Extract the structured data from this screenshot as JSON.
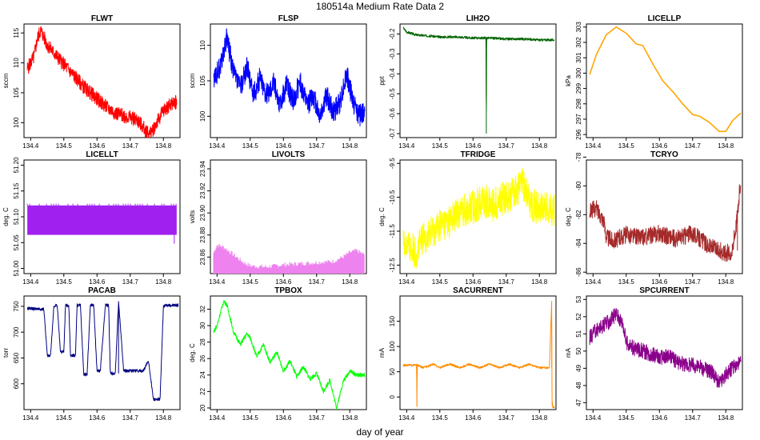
{
  "figure": {
    "title": "180514a   Medium Rate Data 2",
    "xlabel": "day of year"
  },
  "chart_data": [
    {
      "type": "line",
      "name": "FLWT",
      "title": "FLWT",
      "ylabel": "sccm",
      "color": "#ff0000",
      "xlim": [
        134.38,
        134.85
      ],
      "ylim": [
        97.5,
        116.5
      ],
      "xticks": [
        134.4,
        134.5,
        134.6,
        134.7,
        134.8
      ],
      "xtick_labels": [
        "134.4",
        "134.5",
        "134.6",
        "134.7",
        "134.8"
      ],
      "yticks": [
        100,
        105,
        110,
        115
      ],
      "ytick_labels": [
        "100",
        "105",
        "110",
        "115"
      ],
      "noise": 1.2,
      "x": [
        134.39,
        134.41,
        134.42,
        134.43,
        134.45,
        134.48,
        134.52,
        134.56,
        134.6,
        134.63,
        134.66,
        134.69,
        134.72,
        134.75,
        134.76,
        134.78,
        134.8,
        134.82,
        134.84
      ],
      "y": [
        109,
        111,
        114,
        115.5,
        113,
        111,
        108.5,
        106,
        104,
        102.5,
        101.5,
        101,
        100.5,
        98.5,
        98,
        100,
        102,
        103,
        103.5
      ]
    },
    {
      "type": "line",
      "name": "FLSP",
      "title": "FLSP",
      "ylabel": "sccm",
      "color": "#0000ff",
      "xlim": [
        134.38,
        134.85
      ],
      "ylim": [
        97,
        113
      ],
      "xticks": [
        134.4,
        134.5,
        134.6,
        134.7,
        134.8
      ],
      "xtick_labels": [
        "134.4",
        "134.5",
        "134.6",
        "134.7",
        "134.8"
      ],
      "yticks": [
        100,
        105,
        110
      ],
      "ytick_labels": [
        "100",
        "105",
        "110"
      ],
      "noise": 1.6,
      "x": [
        134.39,
        134.41,
        134.43,
        134.45,
        134.47,
        134.49,
        134.51,
        134.53,
        134.55,
        134.57,
        134.59,
        134.61,
        134.63,
        134.65,
        134.67,
        134.69,
        134.71,
        134.73,
        134.75,
        134.77,
        134.79,
        134.81,
        134.83,
        134.845
      ],
      "y": [
        105,
        107,
        111,
        106,
        104,
        107,
        103,
        105.5,
        103,
        105,
        101.5,
        104.5,
        102,
        105,
        101.5,
        103,
        100,
        103,
        100.5,
        102,
        106,
        102,
        100,
        101
      ]
    },
    {
      "type": "line",
      "name": "LIH2O",
      "title": "LIH2O",
      "ylabel": "ppt",
      "color": "#006400",
      "xlim": [
        134.38,
        134.85
      ],
      "ylim": [
        -0.72,
        -0.15
      ],
      "xticks": [
        134.4,
        134.5,
        134.6,
        134.7,
        134.8
      ],
      "xtick_labels": [
        "134.4",
        "134.5",
        "134.6",
        "134.7",
        "134.8"
      ],
      "yticks": [
        -0.7,
        -0.6,
        -0.5,
        -0.4,
        -0.3,
        -0.2
      ],
      "ytick_labels": [
        "-0.7",
        "-0.6",
        "-0.5",
        "-0.4",
        "-0.3",
        "-0.2"
      ],
      "noise": 0.006,
      "x": [
        134.39,
        134.4,
        134.43,
        134.47,
        134.5,
        134.55,
        134.6,
        134.639,
        134.64,
        134.641,
        134.7,
        134.75,
        134.8,
        134.845
      ],
      "y": [
        -0.17,
        -0.19,
        -0.205,
        -0.21,
        -0.215,
        -0.215,
        -0.22,
        -0.22,
        -0.7,
        -0.22,
        -0.225,
        -0.225,
        -0.23,
        -0.23
      ]
    },
    {
      "type": "line",
      "name": "LICELLP",
      "title": "LICELLP",
      "ylabel": "kPa",
      "color": "#ffa500",
      "xlim": [
        134.38,
        134.85
      ],
      "ylim": [
        295.8,
        303.2
      ],
      "xticks": [
        134.4,
        134.5,
        134.6,
        134.7,
        134.8
      ],
      "xtick_labels": [
        "134.4",
        "134.5",
        "134.6",
        "134.7",
        "134.8"
      ],
      "yticks": [
        296,
        297,
        298,
        299,
        300,
        301,
        302,
        303
      ],
      "ytick_labels": [
        "296",
        "297",
        "298",
        "299",
        "300",
        "301",
        "302",
        "303"
      ],
      "noise": 0,
      "x": [
        134.39,
        134.41,
        134.44,
        134.47,
        134.5,
        134.53,
        134.55,
        134.58,
        134.61,
        134.64,
        134.67,
        134.7,
        134.72,
        134.75,
        134.78,
        134.8,
        134.82,
        134.845
      ],
      "y": [
        299.9,
        301.2,
        302.5,
        303,
        302.6,
        301.9,
        301.8,
        300.6,
        299.5,
        298.8,
        298,
        297.3,
        297.2,
        296.8,
        296.2,
        296.2,
        296.9,
        297.4
      ]
    },
    {
      "type": "line",
      "name": "LICELLT",
      "title": "LICELLT",
      "ylabel": "deg. C",
      "color": "#a020f0",
      "xlim": [
        134.38,
        134.85
      ],
      "ylim": [
        50.99,
        51.21
      ],
      "xticks": [
        134.4,
        134.5,
        134.6,
        134.7,
        134.8
      ],
      "xtick_labels": [
        "134.4",
        "134.5",
        "134.6",
        "134.7",
        "134.8"
      ],
      "yticks": [
        51.0,
        51.05,
        51.1,
        51.15,
        51.2
      ],
      "ytick_labels": [
        "51.00",
        "51.05",
        "51.10",
        "51.15",
        "51.20"
      ],
      "noise": 0,
      "x": [
        134.39,
        134.84
      ],
      "y": [
        51.065,
        51.122
      ]
    },
    {
      "type": "line",
      "name": "LIVOLTS",
      "title": "LIVOLTS",
      "ylabel": "volts",
      "color": "#ee82ee",
      "xlim": [
        134.38,
        134.85
      ],
      "ylim": [
        23.845,
        23.948
      ],
      "xticks": [
        134.4,
        134.5,
        134.6,
        134.7,
        134.8
      ],
      "xtick_labels": [
        "134.4",
        "134.5",
        "134.6",
        "134.7",
        "134.8"
      ],
      "yticks": [
        23.86,
        23.88,
        23.9,
        23.92,
        23.94
      ],
      "ytick_labels": [
        "23.86",
        "23.88",
        "23.90",
        "23.92",
        "23.94"
      ],
      "noise": 0,
      "x": [
        134.39,
        134.4,
        134.42,
        134.45,
        134.48,
        134.5,
        134.55,
        134.6,
        134.65,
        134.7,
        134.75,
        134.78,
        134.8,
        134.82,
        134.845
      ],
      "y": [
        23.864,
        23.871,
        23.869,
        23.862,
        23.855,
        23.852,
        23.851,
        23.853,
        23.854,
        23.855,
        23.856,
        23.86,
        23.864,
        23.866,
        23.862
      ]
    },
    {
      "type": "line",
      "name": "TFRIDGE",
      "title": "TFRIDGE",
      "ylabel": "deg. C",
      "color": "#ffff00",
      "xlim": [
        134.38,
        134.85
      ],
      "ylim": [
        -12.75,
        -9.4
      ],
      "xticks": [
        134.4,
        134.5,
        134.6,
        134.7,
        134.8
      ],
      "xtick_labels": [
        "134.4",
        "134.5",
        "134.6",
        "134.7",
        "134.8"
      ],
      "yticks": [
        -12.5,
        -11.5,
        -10.5,
        -9.5
      ],
      "ytick_labels": [
        "-12.5",
        "-11.5",
        "-10.5",
        "-9.5"
      ],
      "noise": 0.5,
      "x": [
        134.39,
        134.41,
        134.43,
        134.45,
        134.48,
        134.5,
        134.53,
        134.56,
        134.6,
        134.63,
        134.66,
        134.7,
        134.72,
        134.75,
        134.77,
        134.8,
        134.82,
        134.845
      ],
      "y": [
        -11.8,
        -12,
        -12.1,
        -11.7,
        -11.5,
        -11.3,
        -11.2,
        -10.9,
        -10.8,
        -10.6,
        -10.7,
        -10.5,
        -10.4,
        -10.1,
        -10.6,
        -10.9,
        -10.8,
        -10.9
      ]
    },
    {
      "type": "line",
      "name": "TCRYO",
      "title": "TCRYO",
      "ylabel": "deg. C",
      "color": "#a52a2a",
      "xlim": [
        134.38,
        134.85
      ],
      "ylim": [
        -86.1,
        -78.2
      ],
      "xticks": [
        134.4,
        134.5,
        134.6,
        134.7,
        134.8
      ],
      "xtick_labels": [
        "134.4",
        "134.5",
        "134.6",
        "134.7",
        "134.8"
      ],
      "yticks": [
        -86,
        -84,
        -82,
        -80,
        -78
      ],
      "ytick_labels": [
        "-86",
        "-84",
        "-82",
        "-80",
        "-78"
      ],
      "noise": 0.6,
      "x": [
        134.39,
        134.41,
        134.43,
        134.44,
        134.46,
        134.5,
        134.55,
        134.6,
        134.65,
        134.7,
        134.75,
        134.8,
        134.82,
        134.835,
        134.845
      ],
      "y": [
        -81.7,
        -81.6,
        -82.3,
        -83.5,
        -83.8,
        -83.4,
        -83.6,
        -83.3,
        -83.7,
        -83.3,
        -84.2,
        -84.7,
        -84.5,
        -82,
        -79.5
      ]
    },
    {
      "type": "line",
      "name": "PACAB",
      "title": "PACAB",
      "ylabel": "torr",
      "color": "#000080",
      "xlim": [
        134.38,
        134.85
      ],
      "ylim": [
        550,
        770
      ],
      "xticks": [
        134.4,
        134.5,
        134.6,
        134.7,
        134.8
      ],
      "xtick_labels": [
        "134.4",
        "134.5",
        "134.6",
        "134.7",
        "134.8"
      ],
      "yticks": [
        600,
        650,
        700,
        750
      ],
      "ytick_labels": [
        "600",
        "650",
        "700",
        "750"
      ],
      "noise": 3,
      "x": [
        134.39,
        134.44,
        134.45,
        134.46,
        134.47,
        134.48,
        134.49,
        134.5,
        134.505,
        134.515,
        134.52,
        134.535,
        134.54,
        134.55,
        134.56,
        134.57,
        134.58,
        134.59,
        134.6,
        134.61,
        134.625,
        134.635,
        134.64,
        134.655,
        134.665,
        134.68,
        134.72,
        134.74,
        134.755,
        134.77,
        134.78,
        134.79,
        134.8,
        134.805,
        134.82,
        134.845
      ],
      "y": [
        746,
        744,
        655,
        655,
        750,
        752,
        662,
        662,
        752,
        752,
        655,
        655,
        752,
        752,
        618,
        618,
        752,
        752,
        625,
        625,
        752,
        752,
        620,
        620,
        760,
        625,
        625,
        625,
        645,
        570,
        570,
        570,
        750,
        752,
        752,
        752
      ]
    },
    {
      "type": "line",
      "name": "TPBOX",
      "title": "TPBOX",
      "ylabel": "deg. C",
      "color": "#00ff00",
      "xlim": [
        134.38,
        134.85
      ],
      "ylim": [
        19.8,
        33.6
      ],
      "xticks": [
        134.4,
        134.5,
        134.6,
        134.7,
        134.8
      ],
      "xtick_labels": [
        "134.4",
        "134.5",
        "134.6",
        "134.7",
        "134.8"
      ],
      "yticks": [
        20,
        22,
        24,
        26,
        28,
        30,
        32
      ],
      "ytick_labels": [
        "20",
        "22",
        "24",
        "26",
        "28",
        "30",
        "32"
      ],
      "noise": 0.25,
      "x": [
        134.39,
        134.4,
        134.42,
        134.43,
        134.45,
        134.47,
        134.49,
        134.5,
        134.52,
        134.54,
        134.56,
        134.58,
        134.6,
        134.62,
        134.64,
        134.66,
        134.68,
        134.7,
        134.72,
        134.74,
        134.76,
        134.78,
        134.8,
        134.82,
        134.845
      ],
      "y": [
        29.3,
        30,
        33,
        32.5,
        29.2,
        27.7,
        29,
        28.5,
        26.2,
        27.7,
        25.5,
        26.8,
        24.5,
        25.7,
        23.8,
        25,
        23.5,
        24.2,
        22,
        23.4,
        20,
        23.2,
        24.5,
        24,
        24
      ]
    },
    {
      "type": "line",
      "name": "SACURRENT",
      "title": "SACURRENT",
      "ylabel": "mA",
      "color": "#ff8c00",
      "xlim": [
        134.38,
        134.85
      ],
      "ylim": [
        -25,
        200
      ],
      "xticks": [
        134.4,
        134.5,
        134.6,
        134.7,
        134.8
      ],
      "xtick_labels": [
        "134.4",
        "134.5",
        "134.6",
        "134.7",
        "134.8"
      ],
      "yticks": [
        0,
        50,
        100,
        150
      ],
      "ytick_labels": [
        "0",
        "50",
        "100",
        "150"
      ],
      "noise": 2,
      "x": [
        134.39,
        134.42,
        134.43,
        134.431,
        134.432,
        134.45,
        134.48,
        134.5,
        134.53,
        134.56,
        134.59,
        134.62,
        134.65,
        134.68,
        134.71,
        134.74,
        134.77,
        134.8,
        134.83,
        134.837,
        134.838,
        134.839,
        134.84,
        134.845
      ],
      "y": [
        63,
        63,
        63,
        -20,
        63,
        58,
        65,
        58,
        65,
        58,
        65,
        58,
        65,
        58,
        65,
        58,
        65,
        58,
        58,
        190,
        -20,
        -10,
        -20,
        -20
      ]
    },
    {
      "type": "line",
      "name": "SPCURRENT",
      "title": "SPCURRENT",
      "ylabel": "mA",
      "color": "#8b008b",
      "xlim": [
        134.38,
        134.85
      ],
      "ylim": [
        46.6,
        53.2
      ],
      "xticks": [
        134.4,
        134.5,
        134.6,
        134.7,
        134.8
      ],
      "xtick_labels": [
        "134.4",
        "134.5",
        "134.6",
        "134.7",
        "134.8"
      ],
      "yticks": [
        47,
        48,
        49,
        50,
        51,
        52,
        53
      ],
      "ytick_labels": [
        "47",
        "48",
        "49",
        "50",
        "51",
        "52",
        "53"
      ],
      "noise": 0.45,
      "x": [
        134.39,
        134.41,
        134.43,
        134.45,
        134.47,
        134.49,
        134.5,
        134.52,
        134.55,
        134.58,
        134.6,
        134.63,
        134.66,
        134.7,
        134.73,
        134.76,
        134.78,
        134.8,
        134.82,
        134.845
      ],
      "y": [
        50.8,
        51.2,
        51.5,
        51.7,
        52.2,
        51.6,
        50.5,
        50.2,
        50,
        49.8,
        49.6,
        49.7,
        49.3,
        49.2,
        49,
        48.8,
        48.1,
        48.6,
        49,
        49.3
      ]
    }
  ]
}
